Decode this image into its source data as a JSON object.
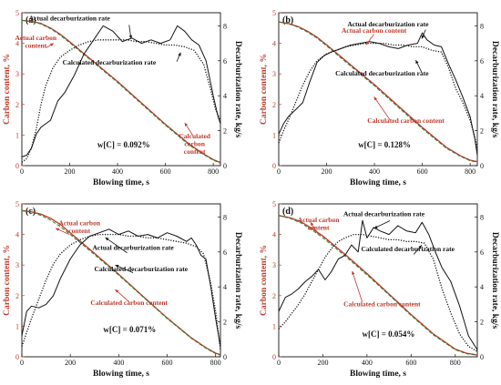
{
  "chart_data": [
    {
      "type": "line",
      "panel_label": "(a)",
      "xlabel": "Blowing time, s",
      "ylabel_left": "Carbon content, %",
      "ylabel_right": "Decarburization rate, kg/s",
      "xlim": [
        0,
        830
      ],
      "ylim_left": [
        0,
        5
      ],
      "ylim_right": [
        0,
        8.75
      ],
      "xticks": [
        0,
        200,
        400,
        600,
        800
      ],
      "yticks_left": [
        0,
        1,
        2,
        3,
        4,
        5
      ],
      "yticks_right": [
        0,
        2,
        4,
        6,
        8
      ],
      "annotation": "w[C] = 0.092%",
      "series": [
        {
          "name": "Actual carbon content",
          "axis": "left",
          "style": "solid",
          "color": "#c0392b",
          "x": [
            0,
            40,
            80,
            120,
            160,
            200,
            300,
            400,
            500,
            600,
            700,
            760,
            800,
            830
          ],
          "y": [
            4.75,
            4.72,
            4.65,
            4.5,
            4.3,
            4.05,
            3.4,
            2.75,
            2.05,
            1.35,
            0.7,
            0.38,
            0.2,
            0.1
          ]
        },
        {
          "name": "Calculated carbon content",
          "axis": "left",
          "style": "dashed",
          "color": "#2e7d32",
          "x": [
            0,
            40,
            80,
            120,
            160,
            200,
            300,
            400,
            500,
            600,
            700,
            760,
            800,
            830
          ],
          "y": [
            4.75,
            4.71,
            4.63,
            4.48,
            4.27,
            4.02,
            3.37,
            2.72,
            2.02,
            1.32,
            0.67,
            0.36,
            0.18,
            0.08
          ]
        },
        {
          "name": "Actual decarburization rate",
          "axis": "right",
          "style": "solid",
          "color": "#111111",
          "x": [
            0,
            20,
            40,
            60,
            80,
            100,
            120,
            150,
            180,
            220,
            260,
            300,
            340,
            380,
            420,
            460,
            500,
            540,
            580,
            620,
            650,
            680,
            710,
            740,
            770,
            800,
            820,
            830
          ],
          "y": [
            0.5,
            0.6,
            1.0,
            1.8,
            2.2,
            2.4,
            2.6,
            3.7,
            4.2,
            5.2,
            6.4,
            7.2,
            8.0,
            7.7,
            7.1,
            7.3,
            7.0,
            7.2,
            7.0,
            7.2,
            8.0,
            7.7,
            7.2,
            6.9,
            6.0,
            4.0,
            2.8,
            2.4
          ]
        },
        {
          "name": "Calculated decarburization rate",
          "axis": "right",
          "style": "dotted",
          "color": "#111111",
          "x": [
            0,
            20,
            40,
            60,
            80,
            100,
            130,
            160,
            200,
            240,
            280,
            320,
            360,
            400,
            440,
            480,
            520,
            560,
            600,
            640,
            680,
            720,
            760,
            790,
            810,
            830
          ],
          "y": [
            0.2,
            0.4,
            1.0,
            2.1,
            3.5,
            4.6,
            5.6,
            6.2,
            6.6,
            6.9,
            7.1,
            7.2,
            7.2,
            7.2,
            7.2,
            7.1,
            7.1,
            7.0,
            6.9,
            6.9,
            6.8,
            6.6,
            5.8,
            4.3,
            3.2,
            2.6
          ]
        }
      ]
    },
    {
      "type": "line",
      "panel_label": "(b)",
      "xlabel": "Blowing time, s",
      "ylabel_left": "Carbon content, %",
      "ylabel_right": "Decarburization rate, kg/s",
      "xlim": [
        0,
        830
      ],
      "ylim_left": [
        0,
        5
      ],
      "ylim_right": [
        0,
        8.75
      ],
      "xticks": [
        0,
        200,
        400,
        600,
        800
      ],
      "yticks_left": [
        0,
        1,
        2,
        3,
        4,
        5
      ],
      "yticks_right": [
        0,
        2,
        4,
        6,
        8
      ],
      "annotation": "w[C] = 0.128%",
      "series": [
        {
          "name": "Actual carbon content",
          "axis": "left",
          "style": "solid",
          "color": "#c0392b",
          "x": [
            0,
            40,
            80,
            120,
            160,
            200,
            300,
            400,
            500,
            600,
            700,
            760,
            800,
            830
          ],
          "y": [
            4.7,
            4.65,
            4.55,
            4.4,
            4.2,
            3.95,
            3.3,
            2.65,
            1.95,
            1.25,
            0.6,
            0.32,
            0.18,
            0.13
          ]
        },
        {
          "name": "Calculated carbon content",
          "axis": "left",
          "style": "dashed",
          "color": "#2e7d32",
          "x": [
            0,
            40,
            80,
            120,
            160,
            200,
            300,
            400,
            500,
            600,
            700,
            760,
            800,
            830
          ],
          "y": [
            4.7,
            4.64,
            4.53,
            4.37,
            4.17,
            3.92,
            3.26,
            2.61,
            1.91,
            1.21,
            0.57,
            0.3,
            0.16,
            0.11
          ]
        },
        {
          "name": "Actual decarburization rate",
          "axis": "right",
          "style": "solid",
          "color": "#111111",
          "x": [
            0,
            20,
            40,
            70,
            100,
            130,
            160,
            190,
            220,
            260,
            300,
            340,
            380,
            420,
            460,
            500,
            540,
            580,
            600,
            620,
            650,
            680,
            710,
            740,
            770,
            800,
            820,
            830
          ],
          "y": [
            1.8,
            2.4,
            2.8,
            3.2,
            3.6,
            4.8,
            5.9,
            6.3,
            6.5,
            6.7,
            6.9,
            7.0,
            7.1,
            7.0,
            6.8,
            6.7,
            6.9,
            7.0,
            7.6,
            7.2,
            6.9,
            6.8,
            5.8,
            4.9,
            3.9,
            2.8,
            1.5,
            0.6
          ]
        },
        {
          "name": "Calculated decarburization rate",
          "axis": "right",
          "style": "dotted",
          "color": "#111111",
          "x": [
            0,
            20,
            40,
            70,
            100,
            130,
            160,
            200,
            240,
            280,
            320,
            360,
            400,
            440,
            480,
            520,
            560,
            600,
            640,
            680,
            710,
            740,
            770,
            800,
            820,
            830
          ],
          "y": [
            1.3,
            2.0,
            2.6,
            3.6,
            4.6,
            5.4,
            6.0,
            6.4,
            6.6,
            6.8,
            6.9,
            7.0,
            7.0,
            7.0,
            6.9,
            6.9,
            6.8,
            6.8,
            6.6,
            6.5,
            5.6,
            4.4,
            3.6,
            2.6,
            1.6,
            1.0
          ]
        }
      ]
    },
    {
      "type": "line",
      "panel_label": "(c)",
      "xlabel": "Blowing time, s",
      "ylabel_left": "Carbon content, %",
      "ylabel_right": "Decarburization rate, kg/s",
      "xlim": [
        0,
        820
      ],
      "ylim_left": [
        0,
        5
      ],
      "ylim_right": [
        0,
        8.75
      ],
      "xticks": [
        0,
        200,
        400,
        600,
        800
      ],
      "yticks_left": [
        0,
        1,
        2,
        3,
        4,
        5
      ],
      "yticks_right": [
        0,
        2,
        4,
        6,
        8
      ],
      "annotation": "w[C] = 0.071%",
      "series": [
        {
          "name": "Actual carbon content",
          "axis": "left",
          "style": "solid",
          "color": "#c0392b",
          "x": [
            0,
            40,
            80,
            120,
            160,
            200,
            300,
            400,
            500,
            600,
            700,
            760,
            800,
            820
          ],
          "y": [
            4.78,
            4.74,
            4.66,
            4.52,
            4.32,
            4.05,
            3.38,
            2.7,
            1.98,
            1.27,
            0.62,
            0.3,
            0.12,
            0.07
          ]
        },
        {
          "name": "Calculated carbon content",
          "axis": "left",
          "style": "dashed",
          "color": "#2e7d32",
          "x": [
            0,
            40,
            80,
            120,
            160,
            200,
            300,
            400,
            500,
            600,
            700,
            760,
            800,
            820
          ],
          "y": [
            4.78,
            4.73,
            4.62,
            4.46,
            4.25,
            4.0,
            3.34,
            2.67,
            1.96,
            1.25,
            0.6,
            0.28,
            0.1,
            0.05
          ]
        },
        {
          "name": "Actual decarburization rate",
          "axis": "right",
          "style": "solid",
          "color": "#111111",
          "x": [
            0,
            20,
            40,
            70,
            100,
            130,
            160,
            200,
            240,
            280,
            320,
            360,
            400,
            440,
            480,
            520,
            560,
            600,
            640,
            680,
            700,
            720,
            740,
            760,
            780,
            800,
            820
          ],
          "y": [
            1.2,
            2.6,
            2.9,
            2.8,
            3.0,
            3.5,
            4.5,
            5.6,
            6.4,
            6.9,
            7.1,
            7.3,
            7.0,
            7.2,
            6.9,
            7.0,
            6.8,
            7.1,
            6.9,
            6.6,
            6.8,
            6.4,
            5.8,
            5.6,
            4.0,
            2.2,
            0.6
          ]
        },
        {
          "name": "Calculated decarburization rate",
          "axis": "right",
          "style": "dotted",
          "color": "#111111",
          "x": [
            0,
            20,
            40,
            70,
            100,
            130,
            160,
            200,
            240,
            280,
            320,
            360,
            400,
            440,
            480,
            520,
            560,
            600,
            640,
            680,
            720,
            750,
            780,
            800,
            820
          ],
          "y": [
            0.6,
            1.4,
            2.2,
            3.3,
            4.4,
            5.3,
            5.9,
            6.4,
            6.7,
            6.9,
            7.0,
            7.0,
            7.0,
            6.9,
            6.9,
            6.8,
            6.8,
            6.7,
            6.6,
            6.5,
            6.3,
            5.9,
            4.2,
            2.6,
            0.4
          ]
        }
      ]
    },
    {
      "type": "line",
      "panel_label": "(d)",
      "xlabel": "Blowing time, s",
      "ylabel_left": "Carbon content, %",
      "ylabel_right": "Decarburization rate, kg/s",
      "xlim": [
        0,
        900
      ],
      "ylim_left": [
        0,
        5
      ],
      "ylim_right": [
        0,
        8.75
      ],
      "xticks": [
        0,
        200,
        400,
        600,
        800
      ],
      "yticks_left": [
        0,
        1,
        2,
        3,
        4,
        5
      ],
      "yticks_right": [
        0,
        2,
        4,
        6,
        8
      ],
      "annotation": "w[C] = 0.054%",
      "series": [
        {
          "name": "Actual carbon content",
          "axis": "left",
          "style": "solid",
          "color": "#c0392b",
          "x": [
            0,
            50,
            100,
            150,
            200,
            300,
            400,
            500,
            600,
            700,
            800,
            850,
            900
          ],
          "y": [
            4.62,
            4.55,
            4.42,
            4.2,
            3.95,
            3.35,
            2.72,
            2.05,
            1.38,
            0.75,
            0.25,
            0.12,
            0.06
          ]
        },
        {
          "name": "Calculated carbon content",
          "axis": "left",
          "style": "dashed",
          "color": "#2e7d32",
          "x": [
            0,
            50,
            100,
            150,
            200,
            300,
            400,
            500,
            600,
            700,
            800,
            850,
            900
          ],
          "y": [
            4.62,
            4.53,
            4.38,
            4.15,
            3.9,
            3.3,
            2.68,
            2.02,
            1.35,
            0.72,
            0.23,
            0.1,
            0.05
          ]
        },
        {
          "name": "Actual decarburization rate",
          "axis": "right",
          "style": "solid",
          "color": "#111111",
          "x": [
            0,
            30,
            60,
            90,
            120,
            150,
            180,
            210,
            240,
            270,
            300,
            330,
            360,
            380,
            400,
            430,
            460,
            500,
            540,
            580,
            620,
            650,
            680,
            710,
            740,
            780,
            820,
            860,
            900
          ],
          "y": [
            2.6,
            3.4,
            3.6,
            3.9,
            4.3,
            4.6,
            5.0,
            4.4,
            4.9,
            5.6,
            5.8,
            6.4,
            6.0,
            7.8,
            6.8,
            7.4,
            7.2,
            7.0,
            7.5,
            7.2,
            7.1,
            7.7,
            7.0,
            6.0,
            5.1,
            4.3,
            2.9,
            1.2,
            0.4
          ]
        },
        {
          "name": "Calculated decarburization rate",
          "axis": "right",
          "style": "dotted",
          "color": "#111111",
          "x": [
            0,
            30,
            60,
            90,
            120,
            150,
            180,
            210,
            240,
            270,
            300,
            340,
            380,
            420,
            460,
            500,
            540,
            580,
            620,
            660,
            700,
            740,
            780,
            820,
            860,
            900
          ],
          "y": [
            1.6,
            2.0,
            2.5,
            3.0,
            3.6,
            4.3,
            5.0,
            5.7,
            6.2,
            6.6,
            6.8,
            7.0,
            7.0,
            6.9,
            6.8,
            6.7,
            6.7,
            6.6,
            6.6,
            6.5,
            5.6,
            3.9,
            2.5,
            1.3,
            0.6,
            0.3
          ]
        }
      ]
    }
  ],
  "labels": {
    "a": {
      "actual_carbon": [
        "Actual carbon",
        "content"
      ],
      "calc_carbon": [
        "Calculated",
        "carbon",
        "content"
      ],
      "actual_rate": [
        "Actual decarburization rate"
      ],
      "calc_rate": [
        "Calculated decarburization rate"
      ]
    },
    "b": {
      "actual_carbon": [
        "Actual carbon content"
      ],
      "calc_carbon": [
        "Calculated carbon content"
      ],
      "actual_rate": [
        "Actual decarburization rate"
      ],
      "calc_rate": [
        "Calculated decarburization rate"
      ]
    },
    "c": {
      "actual_carbon": [
        "Actual carbon",
        "content"
      ],
      "calc_carbon": [
        "Calculated carbon content"
      ],
      "actual_rate": [
        "Actual decarburization rate"
      ],
      "calc_rate": [
        "Calculated decarburization rate"
      ]
    },
    "d": {
      "actual_carbon": [
        "Actual carbon",
        "content"
      ],
      "calc_carbon": [
        "Calculated carbon content"
      ],
      "actual_rate": [
        "Actual decarburization rate"
      ],
      "calc_rate": [
        "Calculated decarburization rate"
      ]
    }
  },
  "colors": {
    "red": "#c0392b",
    "black": "#111111",
    "green": "#2e7d32"
  }
}
